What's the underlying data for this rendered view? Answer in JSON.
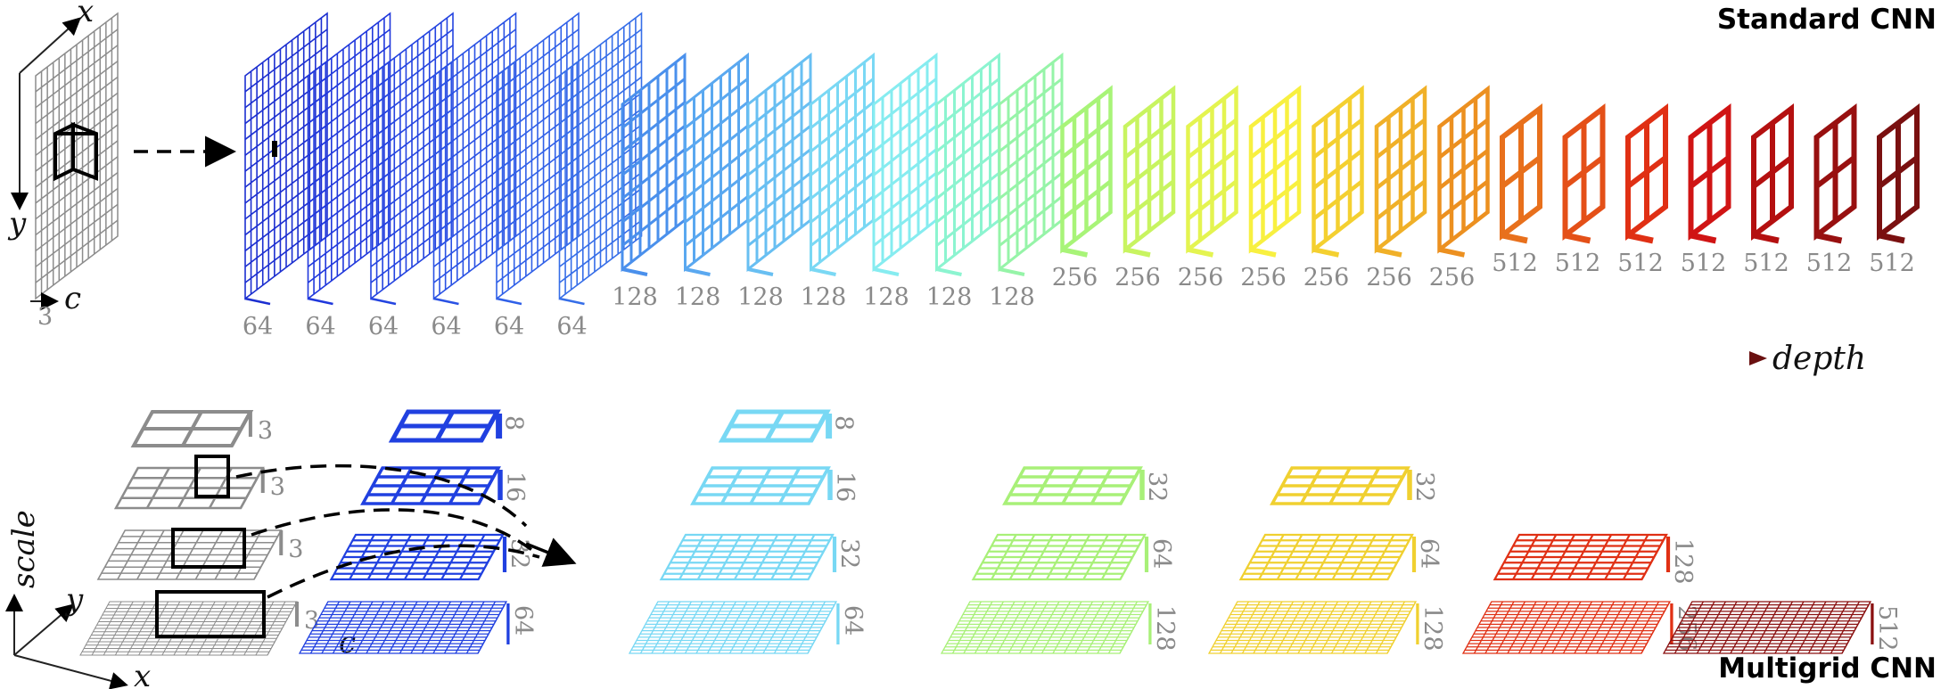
{
  "titles": {
    "top": "Standard CNN",
    "bottom": "Multigrid CNN"
  },
  "axes": {
    "x": "x",
    "y": "y",
    "c": "c",
    "scale": "scale",
    "depth": "depth"
  },
  "colors": {
    "input": "#8c8c8c",
    "gradient": [
      "#1010a0",
      "#2040e0",
      "#3a8ff0",
      "#7fe8f8",
      "#a8f878",
      "#f8f040",
      "#f0a020",
      "#e03010",
      "#c00010",
      "#801010"
    ]
  },
  "standard_cnn": {
    "input_channels": "3",
    "layers": [
      {
        "label": "64",
        "color": "#1c2fd0"
      },
      {
        "label": "64",
        "color": "#2038dc"
      },
      {
        "label": "64",
        "color": "#2444e0"
      },
      {
        "label": "64",
        "color": "#2a52e4"
      },
      {
        "label": "64",
        "color": "#3060e8"
      },
      {
        "label": "64",
        "color": "#366ee8"
      },
      {
        "label": "128",
        "color": "#4a90ec"
      },
      {
        "label": "128",
        "color": "#5aa8f0"
      },
      {
        "label": "128",
        "color": "#68bff2"
      },
      {
        "label": "128",
        "color": "#7ad8f4"
      },
      {
        "label": "128",
        "color": "#86ecf0"
      },
      {
        "label": "128",
        "color": "#8cf4d0"
      },
      {
        "label": "128",
        "color": "#96f4a8"
      },
      {
        "label": "256",
        "color": "#a8f478"
      },
      {
        "label": "256",
        "color": "#c8f460"
      },
      {
        "label": "256",
        "color": "#e4f450"
      },
      {
        "label": "256",
        "color": "#f8f040"
      },
      {
        "label": "256",
        "color": "#f4d030"
      },
      {
        "label": "256",
        "color": "#f0b028"
      },
      {
        "label": "256",
        "color": "#ec9020"
      },
      {
        "label": "512",
        "color": "#e8701c"
      },
      {
        "label": "512",
        "color": "#e45018"
      },
      {
        "label": "512",
        "color": "#e03014"
      },
      {
        "label": "512",
        "color": "#d01414"
      },
      {
        "label": "512",
        "color": "#b41010"
      },
      {
        "label": "512",
        "color": "#981010"
      },
      {
        "label": "512",
        "color": "#7a1010"
      }
    ]
  },
  "multigrid_cnn": {
    "input": {
      "labels": [
        "3",
        "3",
        "3",
        "3"
      ],
      "color": "#8c8c8c"
    },
    "stages": [
      {
        "color": "#2040e0",
        "labels": [
          "8",
          "16",
          "32",
          "64"
        ]
      },
      {
        "color": "#78d8f4",
        "labels": [
          "8",
          "16",
          "32",
          "64"
        ]
      },
      {
        "color": "#a8f078",
        "labels": [
          "32",
          "64",
          "128"
        ]
      },
      {
        "color": "#f0d030",
        "labels": [
          "32",
          "64",
          "128"
        ]
      },
      {
        "color": "#e03014",
        "labels": [
          "128",
          "256"
        ]
      },
      {
        "color": "#8a1010",
        "labels": [
          "512"
        ]
      }
    ]
  }
}
